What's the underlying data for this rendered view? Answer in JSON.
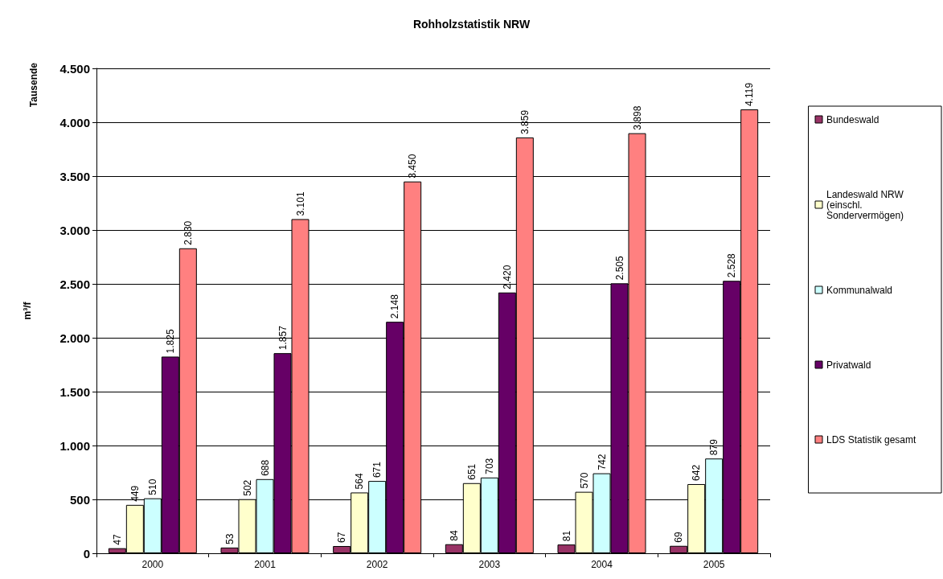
{
  "chart_data": {
    "type": "bar",
    "title": "Rohholzstatistik NRW",
    "ylabel": "m³/f",
    "annotations": [
      "Tausende"
    ],
    "categories": [
      "2000",
      "2001",
      "2002",
      "2003",
      "2004",
      "2005"
    ],
    "series": [
      {
        "name": "Bundeswald",
        "color": "#993366",
        "values": [
          47,
          53,
          67,
          84,
          81,
          69
        ],
        "value_labels": [
          "47",
          "53",
          "67",
          "84",
          "81",
          "69"
        ]
      },
      {
        "name": "Landeswald NRW (einschl. Sondervermögen)",
        "color": "#ffffcc",
        "values": [
          449,
          502,
          564,
          651,
          570,
          642
        ],
        "value_labels": [
          "449",
          "502",
          "564",
          "651",
          "570",
          "642"
        ]
      },
      {
        "name": "Kommunalwald",
        "color": "#ccffff",
        "values": [
          510,
          688,
          671,
          703,
          742,
          879
        ],
        "value_labels": [
          "510",
          "688",
          "671",
          "703",
          "742",
          "879"
        ]
      },
      {
        "name": "Privatwald",
        "color": "#660066",
        "values": [
          1825,
          1857,
          2148,
          2420,
          2505,
          2528
        ],
        "value_labels": [
          "1.825",
          "1.857",
          "2.148",
          "2.420",
          "2.505",
          "2.528"
        ]
      },
      {
        "name": "LDS Statistik gesamt",
        "color": "#ff8080",
        "values": [
          2830,
          3101,
          3450,
          3859,
          3898,
          4119
        ],
        "value_labels": [
          "2.830",
          "3.101",
          "3.450",
          "3.859",
          "3.898",
          "4.119"
        ]
      }
    ],
    "ylim": [
      0,
      4500
    ],
    "yticks": [
      0,
      500,
      {
        "value": 1000,
        "label": "1.000"
      },
      {
        "value": 1500,
        "label": "1.500"
      },
      {
        "value": 2000,
        "label": "2.000"
      },
      {
        "value": 2500,
        "label": "2.500"
      },
      {
        "value": 3000,
        "label": "3.000"
      },
      {
        "value": 3500,
        "label": "3.500"
      },
      {
        "value": 4000,
        "label": "4.000"
      },
      {
        "value": 4500,
        "label": "4.500"
      }
    ],
    "grid": "y",
    "legend": "right"
  }
}
